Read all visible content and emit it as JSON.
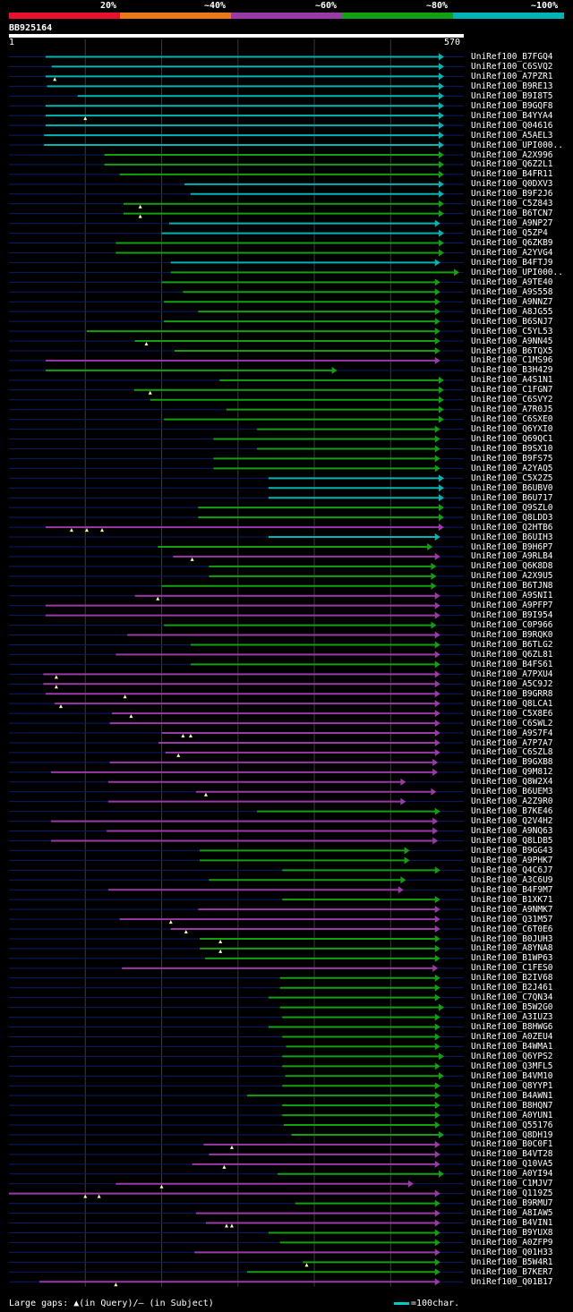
{
  "legend": {
    "labels": [
      "20%",
      "~40%",
      "~60%",
      "~80%",
      "~100%"
    ],
    "colors": [
      "#e8102a",
      "#e87818",
      "#9a3aa8",
      "#12a012",
      "#00b4b4"
    ]
  },
  "query": {
    "name": "BB925164",
    "start": "1",
    "end": "570",
    "length": 570
  },
  "footer": {
    "text": "Large gaps: ▲(in Query)/– (in Subject)",
    "scale": "=100char."
  },
  "hits": [
    {
      "label": "UniRef100_B7FGQ4",
      "s": 48,
      "e": 570,
      "c": "t",
      "g": []
    },
    {
      "label": "UniRef100_C6SVQ2",
      "s": 56,
      "e": 570,
      "c": "t",
      "g": []
    },
    {
      "label": "UniRef100_A7PZR1",
      "s": 48,
      "e": 570,
      "c": "t",
      "g": [
        60
      ]
    },
    {
      "label": "UniRef100_B9RE13",
      "s": 50,
      "e": 570,
      "c": "t",
      "g": []
    },
    {
      "label": "UniRef100_B9I8T5",
      "s": 90,
      "e": 570,
      "c": "t",
      "g": []
    },
    {
      "label": "UniRef100_B9GQF8",
      "s": 48,
      "e": 570,
      "c": "t",
      "g": []
    },
    {
      "label": "UniRef100_B4YYA4",
      "s": 48,
      "e": 570,
      "c": "t",
      "g": [
        100
      ]
    },
    {
      "label": "UniRef100_Q04616",
      "s": 48,
      "e": 570,
      "c": "t",
      "g": []
    },
    {
      "label": "UniRef100_A5AEL3",
      "s": 46,
      "e": 570,
      "c": "t",
      "g": []
    },
    {
      "label": "UniRef100_UPI000..",
      "s": 46,
      "e": 570,
      "c": "t",
      "g": []
    },
    {
      "label": "UniRef100_A2X996",
      "s": 125,
      "e": 570,
      "c": "g",
      "g": []
    },
    {
      "label": "UniRef100_Q6Z2L1",
      "s": 125,
      "e": 570,
      "c": "g",
      "g": []
    },
    {
      "label": "UniRef100_B4FR11",
      "s": 145,
      "e": 570,
      "c": "g",
      "g": []
    },
    {
      "label": "UniRef100_Q0DXV3",
      "s": 230,
      "e": 570,
      "c": "t",
      "g": []
    },
    {
      "label": "UniRef100_B9F2J6",
      "s": 238,
      "e": 570,
      "c": "t",
      "g": []
    },
    {
      "label": "UniRef100_C5Z843",
      "s": 150,
      "e": 570,
      "c": "g",
      "g": [
        172
      ]
    },
    {
      "label": "UniRef100_B6TCN7",
      "s": 150,
      "e": 570,
      "c": "g",
      "g": [
        172
      ]
    },
    {
      "label": "UniRef100_A9NP27",
      "s": 210,
      "e": 565,
      "c": "t",
      "g": []
    },
    {
      "label": "UniRef100_Q5ZP4",
      "s": 200,
      "e": 570,
      "c": "t",
      "g": []
    },
    {
      "label": "UniRef100_Q6ZKB9",
      "s": 140,
      "e": 570,
      "c": "g",
      "g": []
    },
    {
      "label": "UniRef100_A2YVG4",
      "s": 140,
      "e": 570,
      "c": "g",
      "g": []
    },
    {
      "label": "UniRef100_B4FTJ9",
      "s": 212,
      "e": 565,
      "c": "t",
      "g": []
    },
    {
      "label": "UniRef100_UPI000..",
      "s": 212,
      "e": 590,
      "c": "g",
      "g": []
    },
    {
      "label": "UniRef100_A9TE40",
      "s": 200,
      "e": 565,
      "c": "g",
      "g": []
    },
    {
      "label": "UniRef100_A9S558",
      "s": 228,
      "e": 565,
      "c": "g",
      "g": []
    },
    {
      "label": "UniRef100_A9NNZ7",
      "s": 203,
      "e": 565,
      "c": "g",
      "g": []
    },
    {
      "label": "UniRef100_A8JG55",
      "s": 248,
      "e": 565,
      "c": "g",
      "g": []
    },
    {
      "label": "UniRef100_B6SNJ7",
      "s": 203,
      "e": 565,
      "c": "g",
      "g": []
    },
    {
      "label": "UniRef100_C5YL53",
      "s": 102,
      "e": 565,
      "c": "g",
      "g": []
    },
    {
      "label": "UniRef100_A9NN45",
      "s": 165,
      "e": 565,
      "c": "g",
      "g": [
        180
      ]
    },
    {
      "label": "UniRef100_B6TQX5",
      "s": 217,
      "e": 565,
      "c": "g",
      "g": []
    },
    {
      "label": "UniRef100_C1MS96",
      "s": 48,
      "e": 565,
      "c": "p",
      "g": []
    },
    {
      "label": "UniRef100_B3H429",
      "s": 48,
      "e": 430,
      "c": "g",
      "g": []
    },
    {
      "label": "UniRef100_A4S1N1",
      "s": 276,
      "e": 570,
      "c": "g",
      "g": []
    },
    {
      "label": "UniRef100_C1FGN7",
      "s": 164,
      "e": 570,
      "c": "g",
      "g": [
        185
      ]
    },
    {
      "label": "UniRef100_C6SVY2",
      "s": 185,
      "e": 570,
      "c": "g",
      "g": []
    },
    {
      "label": "UniRef100_A7R0J5",
      "s": 285,
      "e": 570,
      "c": "g",
      "g": []
    },
    {
      "label": "UniRef100_C6SXE0",
      "s": 203,
      "e": 570,
      "c": "g",
      "g": []
    },
    {
      "label": "UniRef100_Q6YXI0",
      "s": 325,
      "e": 565,
      "c": "g",
      "g": []
    },
    {
      "label": "UniRef100_Q69QC1",
      "s": 268,
      "e": 565,
      "c": "g",
      "g": []
    },
    {
      "label": "UniRef100_B9SX10",
      "s": 325,
      "e": 565,
      "c": "g",
      "g": []
    },
    {
      "label": "UniRef100_B9FS75",
      "s": 268,
      "e": 565,
      "c": "g",
      "g": []
    },
    {
      "label": "UniRef100_A2YAQ5",
      "s": 268,
      "e": 565,
      "c": "g",
      "g": []
    },
    {
      "label": "UniRef100_C5X2Z5",
      "s": 340,
      "e": 570,
      "c": "t",
      "g": []
    },
    {
      "label": "UniRef100_B6UBV0",
      "s": 340,
      "e": 570,
      "c": "t",
      "g": []
    },
    {
      "label": "UniRef100_B6U717",
      "s": 340,
      "e": 570,
      "c": "t",
      "g": []
    },
    {
      "label": "UniRef100_Q9SZL0",
      "s": 248,
      "e": 570,
      "c": "g",
      "g": []
    },
    {
      "label": "UniRef100_Q8LDD3",
      "s": 248,
      "e": 570,
      "c": "g",
      "g": []
    },
    {
      "label": "UniRef100_Q2HTB6",
      "s": 48,
      "e": 570,
      "c": "p",
      "g": [
        82,
        102,
        122
      ]
    },
    {
      "label": "UniRef100_B6UIH3",
      "s": 340,
      "e": 565,
      "c": "t",
      "g": []
    },
    {
      "label": "UniRef100_B9H6P7",
      "s": 195,
      "e": 555,
      "c": "g",
      "g": []
    },
    {
      "label": "UniRef100_A9RLB4",
      "s": 215,
      "e": 565,
      "c": "p",
      "g": [
        240
      ]
    },
    {
      "label": "UniRef100_Q6K8D8",
      "s": 262,
      "e": 560,
      "c": "g",
      "g": []
    },
    {
      "label": "UniRef100_A2X9U5",
      "s": 262,
      "e": 560,
      "c": "g",
      "g": []
    },
    {
      "label": "UniRef100_B6TJN8",
      "s": 200,
      "e": 560,
      "c": "g",
      "g": []
    },
    {
      "label": "UniRef100_A9SNI1",
      "s": 165,
      "e": 565,
      "c": "p",
      "g": [
        195
      ]
    },
    {
      "label": "UniRef100_A9PFP7",
      "s": 48,
      "e": 565,
      "c": "p",
      "g": []
    },
    {
      "label": "UniRef100_B9I954",
      "s": 48,
      "e": 565,
      "c": "p",
      "g": []
    },
    {
      "label": "UniRef100_C0P966",
      "s": 203,
      "e": 560,
      "c": "g",
      "g": []
    },
    {
      "label": "UniRef100_B9RQK0",
      "s": 155,
      "e": 565,
      "c": "p",
      "g": []
    },
    {
      "label": "UniRef100_B6TLG2",
      "s": 238,
      "e": 565,
      "c": "g",
      "g": []
    },
    {
      "label": "UniRef100_Q6ZL81",
      "s": 140,
      "e": 565,
      "c": "p",
      "g": []
    },
    {
      "label": "UniRef100_B4FS61",
      "s": 238,
      "e": 565,
      "c": "g",
      "g": []
    },
    {
      "label": "UniRef100_A7PXU4",
      "s": 45,
      "e": 565,
      "c": "p",
      "g": [
        62
      ]
    },
    {
      "label": "UniRef100_A5C9J2",
      "s": 45,
      "e": 565,
      "c": "p",
      "g": [
        62
      ]
    },
    {
      "label": "UniRef100_B9GRR8",
      "s": 48,
      "e": 565,
      "c": "p",
      "g": [
        152
      ]
    },
    {
      "label": "UniRef100_Q8LCA1",
      "s": 60,
      "e": 565,
      "c": "p",
      "g": [
        68
      ]
    },
    {
      "label": "UniRef100_C5X8E6",
      "s": 135,
      "e": 565,
      "c": "p",
      "g": [
        160
      ]
    },
    {
      "label": "UniRef100_C6SWL2",
      "s": 132,
      "e": 565,
      "c": "p",
      "g": []
    },
    {
      "label": "UniRef100_A9S7F4",
      "s": 200,
      "e": 565,
      "c": "p",
      "g": [
        228,
        238
      ]
    },
    {
      "label": "UniRef100_A7P7A7",
      "s": 196,
      "e": 565,
      "c": "p",
      "g": []
    },
    {
      "label": "UniRef100_C6SZL8",
      "s": 205,
      "e": 565,
      "c": "p",
      "g": [
        222
      ]
    },
    {
      "label": "UniRef100_B9GXB8",
      "s": 132,
      "e": 562,
      "c": "p",
      "g": []
    },
    {
      "label": "UniRef100_Q9M812",
      "s": 55,
      "e": 562,
      "c": "p",
      "g": []
    },
    {
      "label": "UniRef100_Q8W2X4",
      "s": 130,
      "e": 520,
      "c": "p",
      "g": []
    },
    {
      "label": "UniRef100_B6UEM3",
      "s": 245,
      "e": 560,
      "c": "p",
      "g": [
        258
      ]
    },
    {
      "label": "UniRef100_A2Z9R0",
      "s": 130,
      "e": 520,
      "c": "p",
      "g": []
    },
    {
      "label": "UniRef100_B7KE46",
      "s": 325,
      "e": 565,
      "c": "g",
      "g": []
    },
    {
      "label": "UniRef100_Q2V4H2",
      "s": 55,
      "e": 562,
      "c": "p",
      "g": []
    },
    {
      "label": "UniRef100_A9NQ63",
      "s": 128,
      "e": 562,
      "c": "p",
      "g": []
    },
    {
      "label": "UniRef100_Q8LDB5",
      "s": 55,
      "e": 562,
      "c": "p",
      "g": []
    },
    {
      "label": "UniRef100_B9GG43",
      "s": 250,
      "e": 525,
      "c": "g",
      "g": []
    },
    {
      "label": "UniRef100_A9PHK7",
      "s": 250,
      "e": 525,
      "c": "g",
      "g": []
    },
    {
      "label": "UniRef100_Q4C6J7",
      "s": 358,
      "e": 565,
      "c": "g",
      "g": []
    },
    {
      "label": "UniRef100_A3C6U9",
      "s": 262,
      "e": 520,
      "c": "g",
      "g": []
    },
    {
      "label": "UniRef100_B4F9M7",
      "s": 130,
      "e": 517,
      "c": "p",
      "g": []
    },
    {
      "label": "UniRef100_B1XK71",
      "s": 358,
      "e": 565,
      "c": "g",
      "g": []
    },
    {
      "label": "UniRef100_A9NMK7",
      "s": 248,
      "e": 565,
      "c": "p",
      "g": []
    },
    {
      "label": "UniRef100_Q31M57",
      "s": 145,
      "e": 565,
      "c": "p",
      "g": [
        212
      ]
    },
    {
      "label": "UniRef100_C6T0E6",
      "s": 212,
      "e": 565,
      "c": "p",
      "g": [
        232
      ]
    },
    {
      "label": "UniRef100_B0JUH3",
      "s": 250,
      "e": 565,
      "c": "g",
      "g": [
        277
      ]
    },
    {
      "label": "UniRef100_A8YNA8",
      "s": 250,
      "e": 565,
      "c": "g",
      "g": [
        277
      ]
    },
    {
      "label": "UniRef100_B1WP63",
      "s": 257,
      "e": 565,
      "c": "g",
      "g": []
    },
    {
      "label": "UniRef100_C1FES0",
      "s": 148,
      "e": 562,
      "c": "p",
      "g": []
    },
    {
      "label": "UniRef100_B2IV68",
      "s": 355,
      "e": 565,
      "c": "g",
      "g": []
    },
    {
      "label": "UniRef100_B2J461",
      "s": 355,
      "e": 565,
      "c": "g",
      "g": []
    },
    {
      "label": "UniRef100_C7QN34",
      "s": 340,
      "e": 565,
      "c": "g",
      "g": []
    },
    {
      "label": "UniRef100_B5W2G0",
      "s": 355,
      "e": 570,
      "c": "g",
      "g": []
    },
    {
      "label": "UniRef100_A3IUZ3",
      "s": 358,
      "e": 565,
      "c": "g",
      "g": []
    },
    {
      "label": "UniRef100_B8HWG6",
      "s": 340,
      "e": 565,
      "c": "g",
      "g": []
    },
    {
      "label": "UniRef100_A0ZEU4",
      "s": 358,
      "e": 565,
      "c": "g",
      "g": []
    },
    {
      "label": "UniRef100_B4WMA1",
      "s": 363,
      "e": 565,
      "c": "g",
      "g": []
    },
    {
      "label": "UniRef100_Q6YPS2",
      "s": 358,
      "e": 570,
      "c": "g",
      "g": []
    },
    {
      "label": "UniRef100_Q3MFL5",
      "s": 358,
      "e": 565,
      "c": "g",
      "g": []
    },
    {
      "label": "UniRef100_B4VM10",
      "s": 362,
      "e": 570,
      "c": "g",
      "g": []
    },
    {
      "label": "UniRef100_Q8YYP1",
      "s": 358,
      "e": 565,
      "c": "g",
      "g": []
    },
    {
      "label": "UniRef100_B4AWN1",
      "s": 312,
      "e": 565,
      "c": "g",
      "g": []
    },
    {
      "label": "UniRef100_B8HQN7",
      "s": 358,
      "e": 565,
      "c": "g",
      "g": []
    },
    {
      "label": "UniRef100_A0YUN1",
      "s": 358,
      "e": 565,
      "c": "g",
      "g": []
    },
    {
      "label": "UniRef100_Q55176",
      "s": 360,
      "e": 565,
      "c": "g",
      "g": []
    },
    {
      "label": "UniRef100_Q8DH19",
      "s": 370,
      "e": 570,
      "c": "g",
      "g": []
    },
    {
      "label": "UniRef100_B0C0F1",
      "s": 255,
      "e": 565,
      "c": "p",
      "g": [
        292
      ]
    },
    {
      "label": "UniRef100_B4VT28",
      "s": 262,
      "e": 565,
      "c": "p",
      "g": []
    },
    {
      "label": "UniRef100_Q10VA5",
      "s": 240,
      "e": 565,
      "c": "p",
      "g": [
        282
      ]
    },
    {
      "label": "UniRef100_A0YI94",
      "s": 352,
      "e": 570,
      "c": "g",
      "g": []
    },
    {
      "label": "UniRef100_C1MJV7",
      "s": 140,
      "e": 530,
      "c": "p",
      "g": [
        200
      ]
    },
    {
      "label": "UniRef100_Q119Z5",
      "s": 0,
      "e": 565,
      "c": "p",
      "g": [
        100,
        118
      ]
    },
    {
      "label": "UniRef100_B9RMU7",
      "s": 375,
      "e": 565,
      "c": "g",
      "g": []
    },
    {
      "label": "UniRef100_A8IAW5",
      "s": 245,
      "e": 565,
      "c": "p",
      "g": []
    },
    {
      "label": "UniRef100_B4VIN1",
      "s": 258,
      "e": 565,
      "c": "p",
      "g": [
        285,
        292
      ]
    },
    {
      "label": "UniRef100_B9YUX8",
      "s": 340,
      "e": 565,
      "c": "g",
      "g": []
    },
    {
      "label": "UniRef100_A0ZFP9",
      "s": 355,
      "e": 565,
      "c": "g",
      "g": []
    },
    {
      "label": "UniRef100_Q01H33",
      "s": 243,
      "e": 565,
      "c": "p",
      "g": []
    },
    {
      "label": "UniRef100_B5W4R1",
      "s": 385,
      "e": 565,
      "c": "g",
      "g": [
        390
      ]
    },
    {
      "label": "UniRef100_B7KER7",
      "s": 312,
      "e": 565,
      "c": "g",
      "g": []
    },
    {
      "label": "UniRef100_Q01B17",
      "s": 40,
      "e": 565,
      "c": "p",
      "g": [
        140
      ]
    }
  ]
}
